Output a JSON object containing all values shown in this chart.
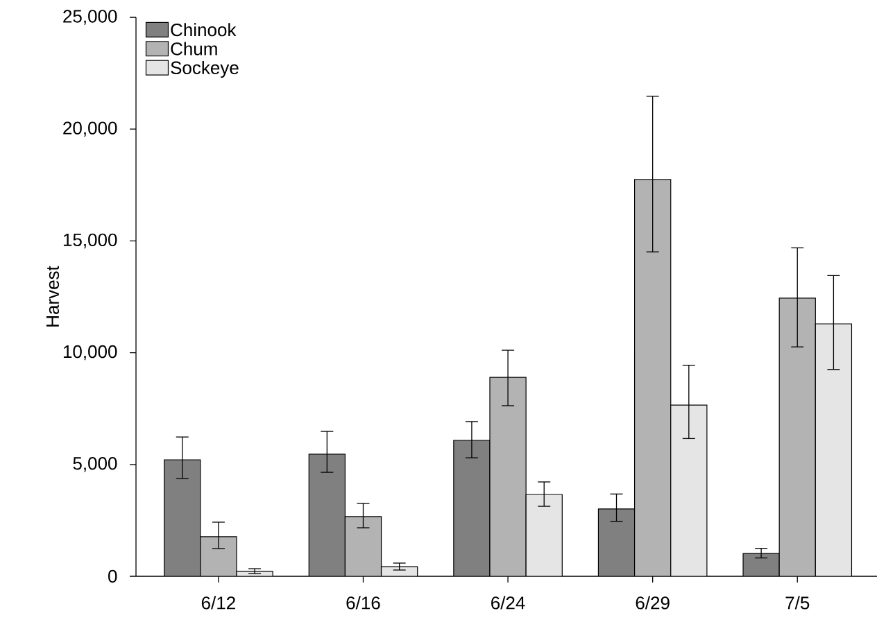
{
  "chart_data": {
    "type": "bar",
    "ylabel": "Harvest",
    "categories": [
      "6/12",
      "6/16",
      "6/24",
      "6/29",
      "7/5"
    ],
    "series": [
      {
        "name": "Chinook",
        "color": "#808080",
        "values": [
          5210,
          5460,
          6080,
          3010,
          1020
        ],
        "errors": [
          [
            4370,
            6230
          ],
          [
            4650,
            6480
          ],
          [
            5300,
            6920
          ],
          [
            2460,
            3680
          ],
          [
            820,
            1250
          ]
        ]
      },
      {
        "name": "Chum",
        "color": "#b3b3b3",
        "values": [
          1770,
          2670,
          8900,
          17750,
          12440
        ],
        "errors": [
          [
            1240,
            2420
          ],
          [
            2170,
            3260
          ],
          [
            7630,
            10110
          ],
          [
            14510,
            21470
          ],
          [
            10260,
            14690
          ]
        ]
      },
      {
        "name": "Sockeye",
        "color": "#e5e5e5",
        "values": [
          220,
          430,
          3660,
          7660,
          11290
        ],
        "errors": [
          [
            120,
            340
          ],
          [
            280,
            590
          ],
          [
            3130,
            4220
          ],
          [
            6160,
            9440
          ],
          [
            9250,
            13450
          ]
        ]
      }
    ],
    "ylim": [
      0,
      25000
    ],
    "yticks": [
      0,
      {
        "value": 5000,
        "label": "5,000"
      },
      {
        "value": 10000,
        "label": "10,000"
      },
      {
        "value": 15000,
        "label": "15,000"
      },
      {
        "value": 20000,
        "label": "20,000"
      },
      {
        "value": 25000,
        "label": "25,000"
      }
    ],
    "grid": false,
    "legend": "top left"
  }
}
